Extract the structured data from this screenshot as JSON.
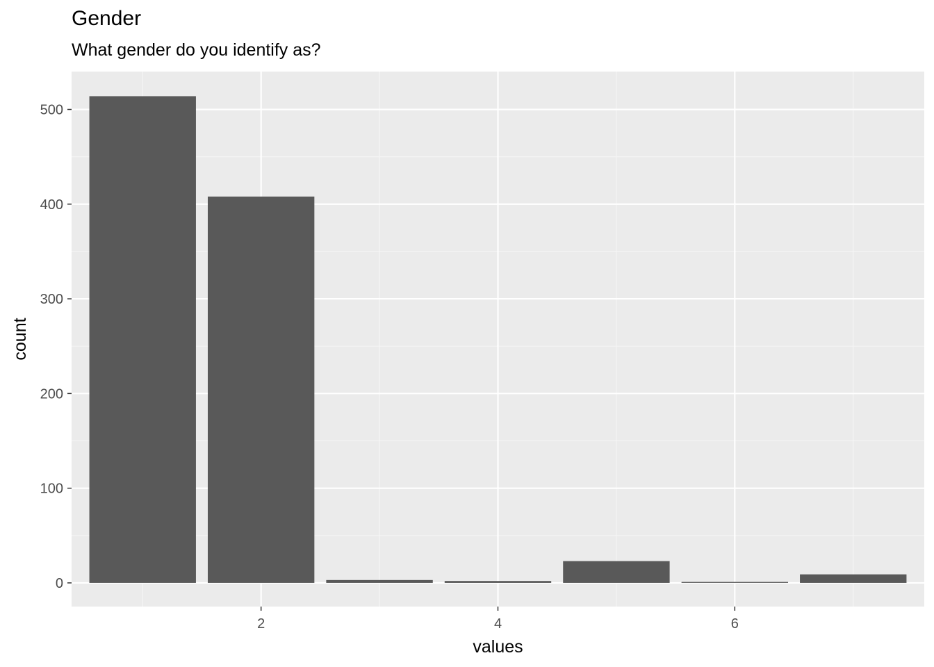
{
  "chart_data": {
    "type": "bar",
    "title": "Gender",
    "subtitle": "What gender do you identify as?",
    "xlabel": "values",
    "ylabel": "count",
    "x": [
      1,
      2,
      3,
      4,
      5,
      6,
      7
    ],
    "values": [
      514,
      408,
      3,
      2,
      23,
      1,
      9
    ],
    "xlim": [
      0.4,
      7.6
    ],
    "ylim": [
      -25,
      540
    ],
    "x_ticks": [
      2,
      4,
      6
    ],
    "y_ticks": [
      0,
      100,
      200,
      300,
      400,
      500
    ],
    "grid": true,
    "colors": {
      "bar": "#595959",
      "panel": "#ebebeb",
      "grid_major": "#ffffff",
      "grid_minor": "#f5f5f5"
    }
  }
}
